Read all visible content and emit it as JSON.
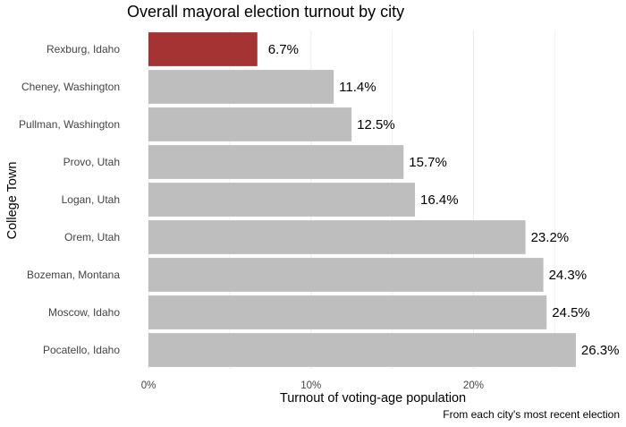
{
  "chart_data": {
    "type": "bar",
    "orientation": "horizontal",
    "title": "Overall mayoral election turnout by city",
    "xlabel": "Turnout of voting-age population",
    "ylabel": "College Town",
    "caption": "From each city's most recent election",
    "categories": [
      "Rexburg, Idaho",
      "Cheney, Washington",
      "Pullman, Washington",
      "Provo, Utah",
      "Logan, Utah",
      "Orem, Utah",
      "Bozeman, Montana",
      "Moscow, Idaho",
      "Pocatello, Idaho"
    ],
    "values": [
      6.7,
      11.4,
      12.5,
      15.7,
      16.4,
      23.2,
      24.3,
      24.5,
      26.3
    ],
    "value_labels": [
      "6.7%",
      "11.4%",
      "12.5%",
      "15.7%",
      "16.4%",
      "23.2%",
      "24.3%",
      "24.5%",
      "26.3%"
    ],
    "highlight_category": "Rexburg, Idaho",
    "xlim": [
      0,
      29
    ],
    "xticks": [
      0,
      10,
      20
    ],
    "xtick_labels": [
      "0%",
      "10%",
      "20%"
    ],
    "grid": "vertical",
    "colors": {
      "highlight": "#a63333",
      "bar": "#bebebe",
      "grid": "#ebebeb"
    }
  }
}
